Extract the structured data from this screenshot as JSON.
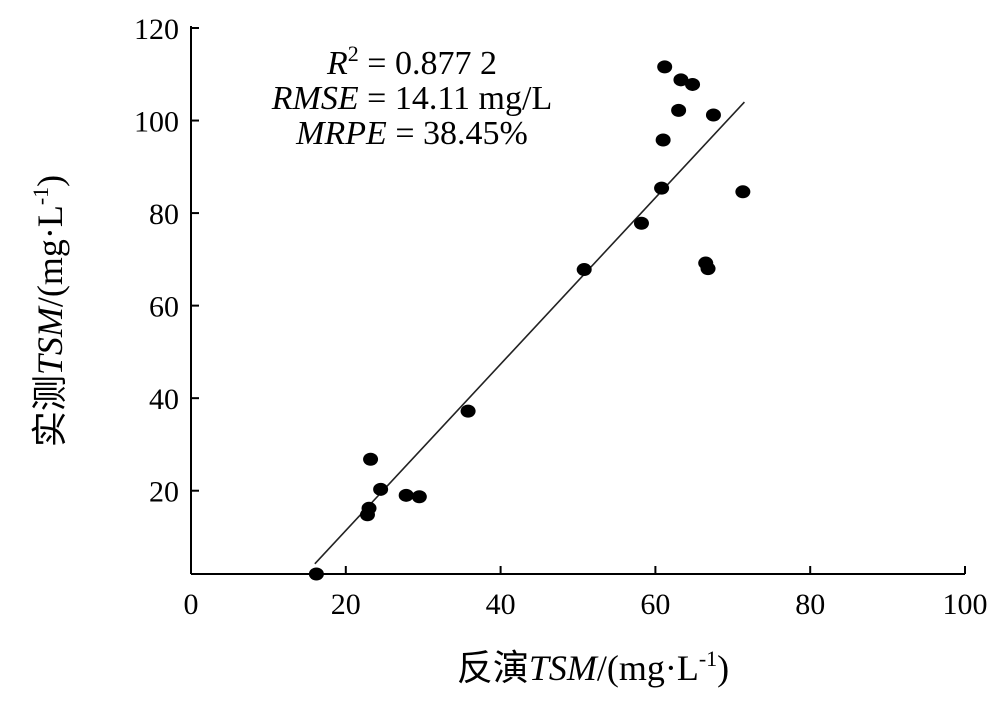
{
  "chart_data": {
    "type": "scatter",
    "title": "",
    "xlabel": {
      "prefix": "反演",
      "var": "TSM",
      "unit_open": "/(mg·L",
      "unit_sup": "-1",
      "unit_close": ")"
    },
    "ylabel": {
      "prefix": "实测",
      "var": "TSM",
      "unit_open": "/(mg·L",
      "unit_sup": "-1",
      "unit_close": ")"
    },
    "xlim": [
      0,
      100
    ],
    "ylim": [
      2,
      120
    ],
    "xticks": [
      0,
      20,
      40,
      60,
      80,
      100
    ],
    "yticks": [
      20,
      40,
      60,
      80,
      100,
      120
    ],
    "grid": false,
    "series": [
      {
        "points": [
          [
            16.2,
            2.0
          ],
          [
            22.8,
            14.8
          ],
          [
            23.0,
            16.2
          ],
          [
            23.2,
            26.8
          ],
          [
            24.5,
            20.3
          ],
          [
            27.8,
            19.0
          ],
          [
            29.5,
            18.7
          ],
          [
            35.8,
            37.2
          ],
          [
            50.8,
            67.8
          ],
          [
            58.2,
            77.8
          ],
          [
            60.8,
            85.4
          ],
          [
            61.0,
            95.8
          ],
          [
            61.2,
            111.6
          ],
          [
            63.0,
            102.2
          ],
          [
            63.3,
            108.8
          ],
          [
            64.8,
            107.8
          ],
          [
            66.5,
            69.2
          ],
          [
            66.8,
            68.0
          ],
          [
            67.5,
            101.2
          ],
          [
            71.3,
            84.6
          ]
        ]
      }
    ],
    "fit_line": {
      "x": [
        16.0,
        71.5
      ],
      "y": [
        4.2,
        104.0
      ]
    },
    "annotations": [
      {
        "var": "R",
        "sup": "2",
        "text": " = 0.877 2"
      },
      {
        "var": "RMSE",
        "sup": "",
        "text": " = 14.11 mg/L"
      },
      {
        "var": "MRPE",
        "sup": "",
        "text": " = 38.45%"
      }
    ]
  }
}
